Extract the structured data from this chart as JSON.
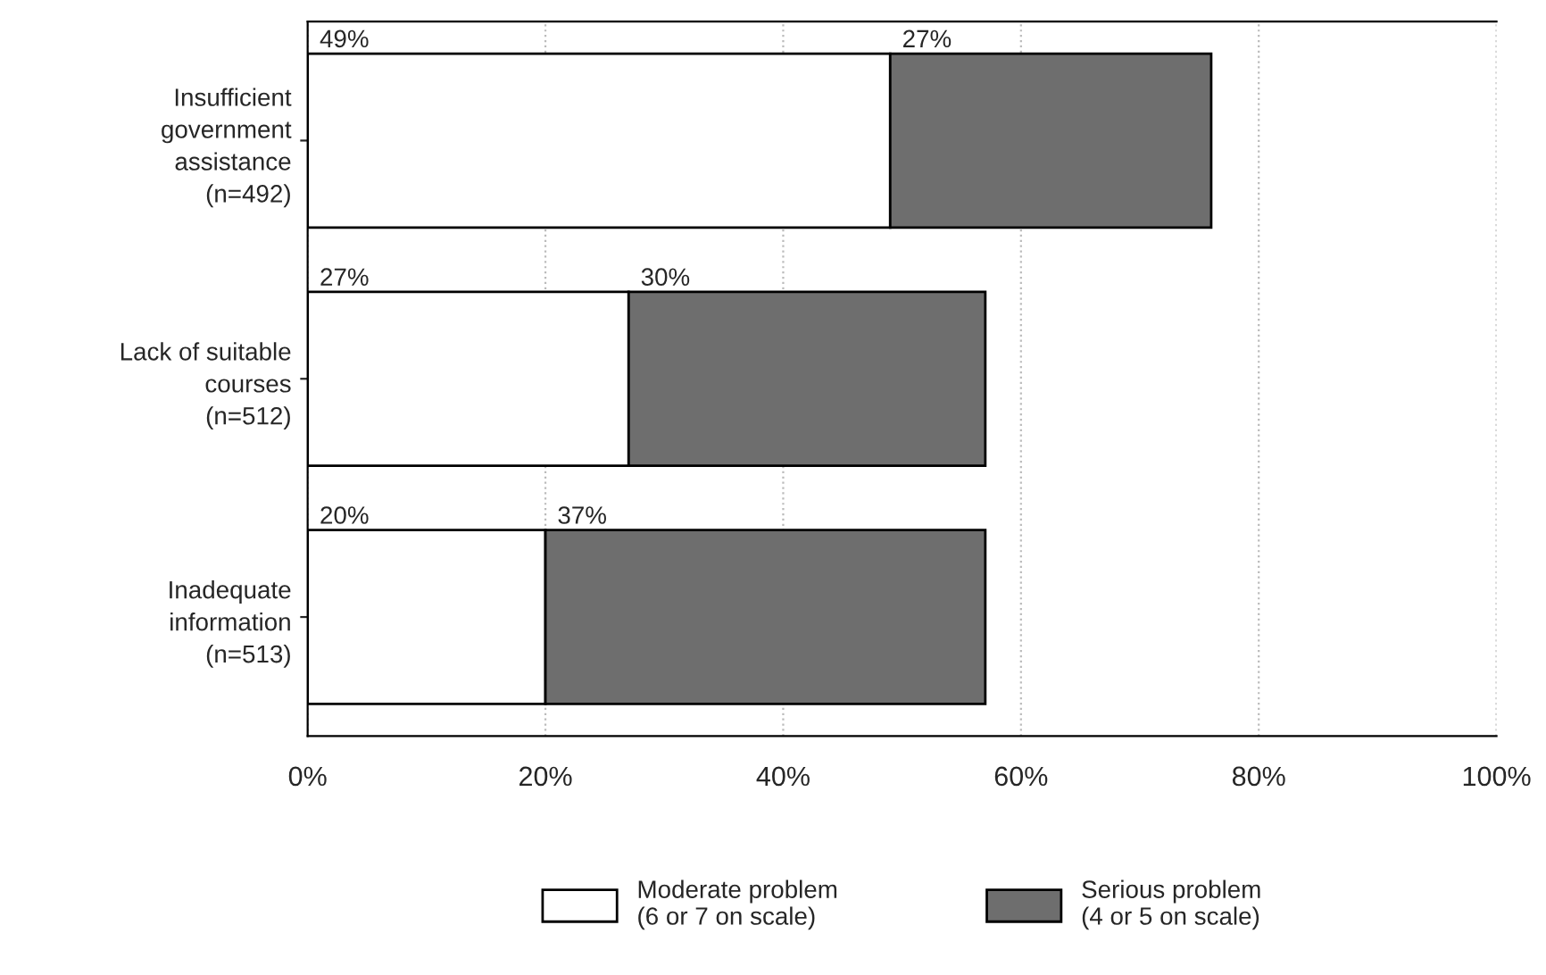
{
  "chart_data": {
    "type": "bar",
    "orientation": "horizontal",
    "stacked": true,
    "categories": [
      "Insufficient\ngovernment\nassistance\n(n=492)",
      "Lack of suitable\ncourses\n(n=512)",
      "Inadequate\ninformation\n(n=513)"
    ],
    "series": [
      {
        "name": "Moderate problem\n(6 or 7 on scale)",
        "color": "#ffffff",
        "values": [
          49,
          27,
          20
        ],
        "value_labels": [
          "49%",
          "27%",
          "20%"
        ]
      },
      {
        "name": "Serious problem\n(4 or 5 on scale)",
        "color": "#6e6e6e",
        "values": [
          27,
          30,
          37
        ],
        "value_labels": [
          "27%",
          "30%",
          "37%"
        ]
      }
    ],
    "xlim": [
      0,
      100
    ],
    "xticks": [
      {
        "value": 0,
        "label": "0%"
      },
      {
        "value": 20,
        "label": "20%"
      },
      {
        "value": 40,
        "label": "40%"
      },
      {
        "value": 60,
        "label": "60%"
      },
      {
        "value": 80,
        "label": "80%"
      },
      {
        "value": 100,
        "label": "100%"
      }
    ],
    "grid": "x",
    "legend": "bottom"
  }
}
